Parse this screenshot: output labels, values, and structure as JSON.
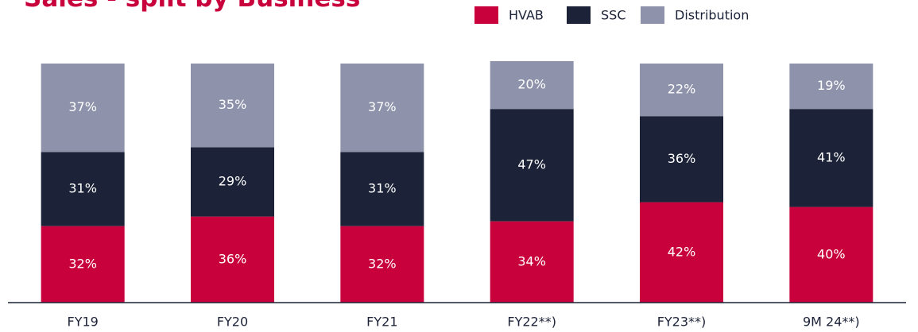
{
  "chart_data": {
    "type": "stacked_bar",
    "title": "Sales - split by Business",
    "categories": [
      "FY19",
      "FY20",
      "FY21",
      "FY22**)",
      "FY23**)",
      "9M 24**)"
    ],
    "series": [
      {
        "name": "HVAB",
        "color": "#c8003c",
        "values": [
          32,
          36,
          32,
          34,
          42,
          40
        ],
        "value_labels": [
          "32%",
          "36%",
          "32%",
          "34%",
          "42%",
          "40%"
        ]
      },
      {
        "name": "SSC",
        "color": "#1c2237",
        "values": [
          31,
          29,
          31,
          47,
          36,
          41
        ],
        "value_labels": [
          "31%",
          "29%",
          "31%",
          "47%",
          "36%",
          "41%"
        ]
      },
      {
        "name": "Distribution",
        "color": "#8e93ab",
        "values": [
          37,
          35,
          37,
          20,
          22,
          19
        ],
        "value_labels": [
          "37%",
          "35%",
          "37%",
          "20%",
          "22%",
          "19%"
        ]
      }
    ],
    "ylim": [
      0,
      100
    ]
  }
}
